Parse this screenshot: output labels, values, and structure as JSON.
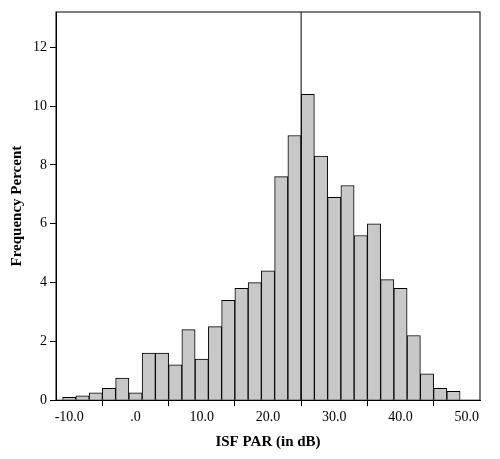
{
  "chart_data": {
    "type": "histogram",
    "x_label": "ISF PAR (in dB)",
    "y_label": "Frequency Percent",
    "bins": [
      -11,
      -9,
      -7,
      -5,
      -3,
      -1,
      1,
      3,
      5,
      7,
      9,
      11,
      13,
      15,
      17,
      19,
      21,
      23,
      25,
      27,
      29,
      31,
      33,
      35,
      37,
      39,
      41,
      43,
      45,
      47,
      49
    ],
    "values": [
      0.1,
      0.15,
      0.25,
      0.4,
      0.75,
      0.25,
      1.6,
      1.6,
      1.2,
      2.4,
      1.4,
      2.5,
      3.4,
      3.8,
      4.0,
      4.4,
      7.6,
      9.0,
      10.4,
      8.3,
      6.9,
      7.3,
      5.6,
      6.0,
      4.1,
      3.8,
      2.2,
      0.9,
      0.4,
      0.3
    ],
    "color": "#c8c8c8",
    "reference_line": 25,
    "xlim": [
      -12,
      52
    ],
    "xticks": [
      {
        "value": -10,
        "label": "-10.0"
      },
      {
        "value": 0,
        "label": ".0"
      },
      {
        "value": 10,
        "label": "10.0"
      },
      {
        "value": 20,
        "label": "20.0"
      },
      {
        "value": 30,
        "label": "30.0"
      },
      {
        "value": 40,
        "label": "40.0"
      },
      {
        "value": 50,
        "label": "50.0"
      }
    ],
    "ylim": [
      0,
      13.2
    ],
    "yticks": [
      0,
      2,
      4,
      6,
      8,
      10,
      12
    ],
    "grid": false
  }
}
